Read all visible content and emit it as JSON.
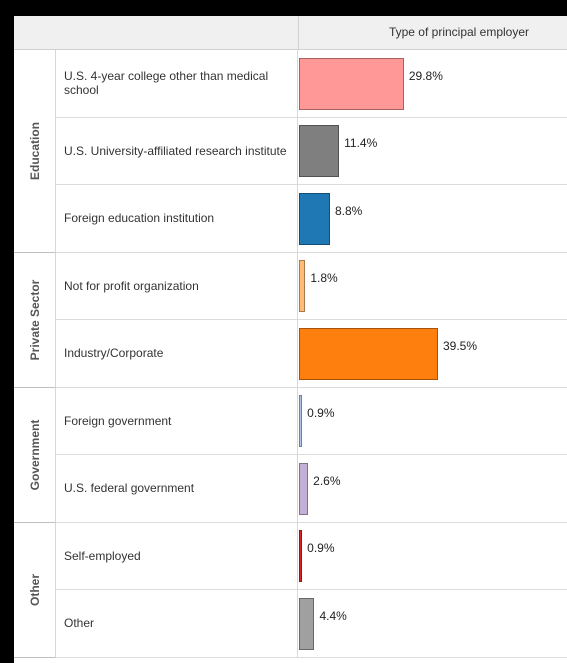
{
  "chart_data": {
    "type": "bar",
    "orientation": "horizontal",
    "title": "Type of principal employer",
    "value_suffix": "%",
    "xlim": [
      0,
      50
    ],
    "groups": [
      {
        "name": "Education",
        "rows": [
          {
            "label": "U.S. 4-year college other than medical school",
            "value": 29.8,
            "display": "29.8%",
            "color": "#ff9896"
          },
          {
            "label": "U.S. University-affiliated research institute",
            "value": 11.4,
            "display": "11.4%",
            "color": "#7f7f7f"
          },
          {
            "label": "Foreign education institution",
            "value": 8.8,
            "display": "8.8%",
            "color": "#1f77b4"
          }
        ]
      },
      {
        "name": "Private Sector",
        "rows": [
          {
            "label": "Not for profit organization",
            "value": 1.8,
            "display": "1.8%",
            "color": "#ffbb78"
          },
          {
            "label": "Industry/Corporate",
            "value": 39.5,
            "display": "39.5%",
            "color": "#ff7f0e"
          }
        ]
      },
      {
        "name": "Government",
        "rows": [
          {
            "label": "Foreign government",
            "value": 0.9,
            "display": "0.9%",
            "color": "#aec7e8"
          },
          {
            "label": "U.S. federal government",
            "value": 2.6,
            "display": "2.6%",
            "color": "#c5b0d5"
          }
        ]
      },
      {
        "name": "Other",
        "rows": [
          {
            "label": "Self-employed",
            "value": 0.9,
            "display": "0.9%",
            "color": "#d62728"
          },
          {
            "label": "Other",
            "value": 4.4,
            "display": "4.4%",
            "color": "#a0a0a0"
          }
        ]
      }
    ]
  }
}
